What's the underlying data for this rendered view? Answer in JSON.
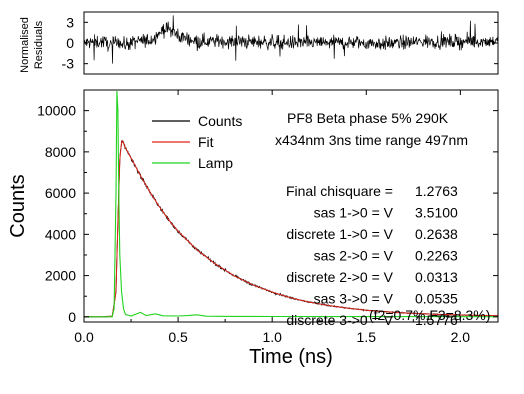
{
  "chart_data": [
    {
      "type": "line",
      "panel": "residuals",
      "ylabel_lines": [
        "Normalised",
        "Residuals"
      ],
      "xlim": [
        0.0,
        2.2
      ],
      "ylim": [
        -4.5,
        4.5
      ],
      "yticks": [
        -3,
        0,
        3
      ],
      "ytick_labels": [
        "-3",
        "0",
        "3"
      ],
      "series": [
        {
          "color": "#000000",
          "x": [
            0.0,
            0.1,
            0.15,
            0.18,
            0.2,
            0.25,
            0.3,
            0.35,
            0.38,
            0.42,
            0.45,
            0.5,
            0.6,
            0.8,
            1.0,
            1.2,
            1.4,
            1.6,
            1.8,
            2.0,
            2.2
          ],
          "values": [
            0.0,
            0.2,
            -0.4,
            0.6,
            -0.3,
            0.0,
            0.3,
            0.4,
            1.0,
            1.9,
            2.1,
            1.0,
            0.3,
            0.2,
            0.1,
            0.0,
            0.1,
            -0.1,
            0.2,
            0.2,
            0.3
          ],
          "noise_amplitude": 1.0
        }
      ]
    },
    {
      "type": "line",
      "panel": "decay",
      "xlabel": "Time (ns)",
      "ylabel": "Counts",
      "xlim": [
        0.0,
        2.2
      ],
      "ylim": [
        -250,
        11000
      ],
      "xticks": [
        0.0,
        0.5,
        1.0,
        1.5,
        2.0
      ],
      "xtick_labels": [
        "0.0",
        "0.5",
        "1.0",
        "1.5",
        "2.0"
      ],
      "yticks": [
        0,
        2000,
        4000,
        6000,
        8000,
        10000
      ],
      "ytick_labels": [
        "0",
        "2000",
        "4000",
        "6000",
        "8000",
        "10000"
      ],
      "legend_position": "top-center",
      "series": [
        {
          "name": "Counts",
          "color": "#000000",
          "x": [
            0.0,
            0.1,
            0.15,
            0.17,
            0.18,
            0.19,
            0.2,
            0.21,
            0.22,
            0.25,
            0.3,
            0.35,
            0.4,
            0.45,
            0.5,
            0.6,
            0.7,
            0.8,
            0.9,
            1.0,
            1.1,
            1.2,
            1.3,
            1.4,
            1.5,
            1.6,
            1.7,
            1.8,
            1.9,
            2.0,
            2.1,
            2.2
          ],
          "values": [
            0,
            0,
            30,
            1200,
            4500,
            7600,
            8550,
            8450,
            8200,
            7700,
            6850,
            6050,
            5350,
            4700,
            4150,
            3250,
            2550,
            1980,
            1540,
            1200,
            920,
            710,
            550,
            420,
            320,
            250,
            190,
            150,
            115,
            90,
            70,
            55
          ],
          "noise_amplitude": 90
        },
        {
          "name": "Fit",
          "color": "#e0261a",
          "x": [
            0.0,
            0.1,
            0.15,
            0.17,
            0.18,
            0.19,
            0.2,
            0.21,
            0.22,
            0.25,
            0.3,
            0.35,
            0.4,
            0.45,
            0.5,
            0.6,
            0.7,
            0.8,
            0.9,
            1.0,
            1.1,
            1.2,
            1.3,
            1.4,
            1.5,
            1.6,
            1.7,
            1.8,
            1.9,
            2.0,
            2.1,
            2.2
          ],
          "values": [
            0,
            0,
            30,
            1200,
            4500,
            7600,
            8550,
            8450,
            8200,
            7700,
            6850,
            6050,
            5350,
            4700,
            4150,
            3250,
            2550,
            1980,
            1540,
            1200,
            920,
            710,
            550,
            420,
            320,
            250,
            190,
            150,
            115,
            90,
            70,
            55
          ]
        },
        {
          "name": "Lamp",
          "color": "#22d41e",
          "x": [
            0.0,
            0.15,
            0.16,
            0.17,
            0.175,
            0.18,
            0.185,
            0.19,
            0.2,
            0.21,
            0.22,
            0.25,
            0.3,
            0.33,
            0.38,
            0.42,
            0.5,
            0.55,
            0.6,
            0.65,
            0.8,
            1.0,
            1.5,
            2.2
          ],
          "values": [
            0,
            0,
            400,
            6000,
            11500,
            10000,
            6000,
            3000,
            1200,
            400,
            120,
            40,
            220,
            60,
            150,
            50,
            40,
            60,
            100,
            30,
            20,
            15,
            10,
            5
          ]
        }
      ],
      "annotations": {
        "title_line1": "PF8 Beta phase 5% 290K",
        "title_line2": "x434nm 3ns time range 497nm",
        "rows": [
          {
            "label": "Final chisquare =",
            "value": "1.2763"
          },
          {
            "label": "sas 1->0 = V",
            "value": "3.5100"
          },
          {
            "label": "discrete 1->0 = V",
            "value": "0.2638"
          },
          {
            "label": "sas 2->0 = V",
            "value": "0.2263"
          },
          {
            "label": "discrete 2->0 = V",
            "value": "0.0313"
          },
          {
            "label": "sas 3->0 = V",
            "value": "0.0535"
          },
          {
            "label": "discrete 3->0 = V",
            "value": "1.5776"
          }
        ],
        "footnote": "(f2=0.7%,F3=8.3%)"
      }
    }
  ]
}
